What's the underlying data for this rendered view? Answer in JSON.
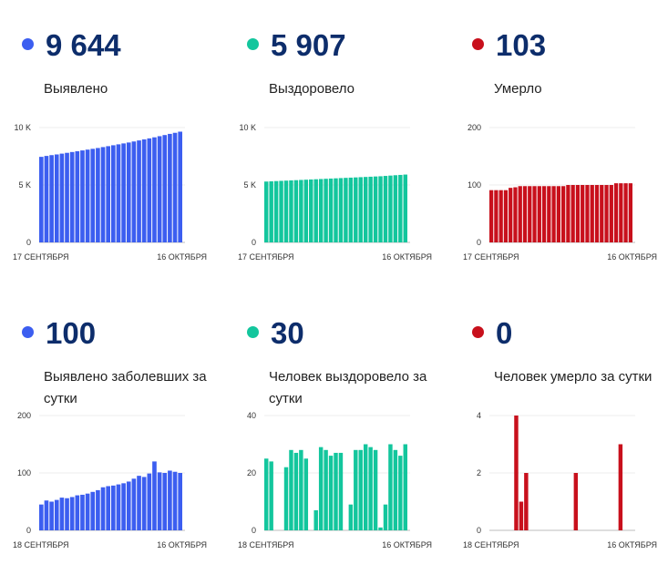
{
  "panels": [
    {
      "value": "9 644",
      "label": "Выявлено",
      "color": "#3c5ef0",
      "chart_data": {
        "type": "bar",
        "yticks": [
          {
            "v": 0,
            "t": "0"
          },
          {
            "v": 5000,
            "t": "5 K"
          },
          {
            "v": 10000,
            "t": "10 K"
          }
        ],
        "ylim": [
          0,
          10000
        ],
        "start_label": "17 СЕНТЯБРЯ",
        "end_label": "16 ОКТЯБРЯ",
        "values": [
          7450,
          7530,
          7600,
          7660,
          7730,
          7800,
          7870,
          7940,
          8010,
          8080,
          8150,
          8220,
          8300,
          8380,
          8460,
          8540,
          8620,
          8700,
          8790,
          8880,
          8970,
          9060,
          9150,
          9250,
          9350,
          9450,
          9544,
          9644
        ]
      }
    },
    {
      "value": "5 907",
      "label": "Выздоровело",
      "color": "#13c69d",
      "chart_data": {
        "type": "bar",
        "yticks": [
          {
            "v": 0,
            "t": "0"
          },
          {
            "v": 5000,
            "t": "5 K"
          },
          {
            "v": 10000,
            "t": "10 K"
          }
        ],
        "ylim": [
          0,
          10000
        ],
        "start_label": "17 СЕНТЯБРЯ",
        "end_label": "16 ОКТЯБРЯ",
        "values": [
          5300,
          5320,
          5340,
          5360,
          5380,
          5400,
          5420,
          5440,
          5460,
          5480,
          5500,
          5520,
          5540,
          5560,
          5580,
          5600,
          5620,
          5640,
          5660,
          5680,
          5700,
          5720,
          5740,
          5760,
          5790,
          5820,
          5850,
          5877,
          5907
        ]
      }
    },
    {
      "value": "103",
      "label": "Умерло",
      "color": "#c8101c",
      "chart_data": {
        "type": "bar",
        "yticks": [
          {
            "v": 0,
            "t": "0"
          },
          {
            "v": 100,
            "t": "100"
          },
          {
            "v": 200,
            "t": "200"
          }
        ],
        "ylim": [
          0,
          200
        ],
        "start_label": "17 СЕНТЯБРЯ",
        "end_label": "16 ОКТЯБРЯ",
        "values": [
          91,
          91,
          91,
          91,
          95,
          96,
          98,
          98,
          98,
          98,
          98,
          98,
          98,
          98,
          98,
          98,
          100,
          100,
          100,
          100,
          100,
          100,
          100,
          100,
          100,
          100,
          103,
          103,
          103,
          103
        ]
      }
    },
    {
      "value": "100",
      "label": "Выявлено заболевших за сутки",
      "color": "#3c5ef0",
      "chart_data": {
        "type": "bar",
        "yticks": [
          {
            "v": 0,
            "t": "0"
          },
          {
            "v": 100,
            "t": "100"
          },
          {
            "v": 200,
            "t": "200"
          }
        ],
        "ylim": [
          0,
          200
        ],
        "start_label": "18 СЕНТЯБРЯ",
        "end_label": "16 ОКТЯБРЯ",
        "values": [
          45,
          52,
          50,
          53,
          57,
          56,
          58,
          61,
          62,
          64,
          67,
          70,
          75,
          77,
          78,
          80,
          82,
          85,
          90,
          95,
          93,
          99,
          120,
          101,
          100,
          104,
          102,
          100
        ]
      }
    },
    {
      "value": "30",
      "label": "Человек выздоровело за сутки",
      "color": "#13c69d",
      "chart_data": {
        "type": "bar",
        "yticks": [
          {
            "v": 0,
            "t": "0"
          },
          {
            "v": 20,
            "t": "20"
          },
          {
            "v": 40,
            "t": "40"
          }
        ],
        "ylim": [
          0,
          40
        ],
        "start_label": "18 СЕНТЯБРЯ",
        "end_label": "16 ОКТЯБРЯ",
        "values": [
          25,
          24,
          0,
          0,
          22,
          28,
          27,
          28,
          25,
          0,
          7,
          29,
          28,
          26,
          27,
          27,
          0,
          9,
          28,
          28,
          30,
          29,
          28,
          1,
          9,
          30,
          28,
          26,
          30
        ]
      }
    },
    {
      "value": "0",
      "label": "Человек умерло за сутки",
      "color": "#c8101c",
      "chart_data": {
        "type": "bar",
        "yticks": [
          {
            "v": 0,
            "t": "0"
          },
          {
            "v": 2,
            "t": "2"
          },
          {
            "v": 4,
            "t": "4"
          }
        ],
        "ylim": [
          0,
          4
        ],
        "start_label": "18 СЕНТЯБРЯ",
        "end_label": "16 ОКТЯБРЯ",
        "values": [
          0,
          0,
          0,
          0,
          0,
          4,
          1,
          2,
          0,
          0,
          0,
          0,
          0,
          0,
          0,
          0,
          0,
          2,
          0,
          0,
          0,
          0,
          0,
          0,
          0,
          0,
          3,
          0,
          0
        ]
      }
    }
  ]
}
